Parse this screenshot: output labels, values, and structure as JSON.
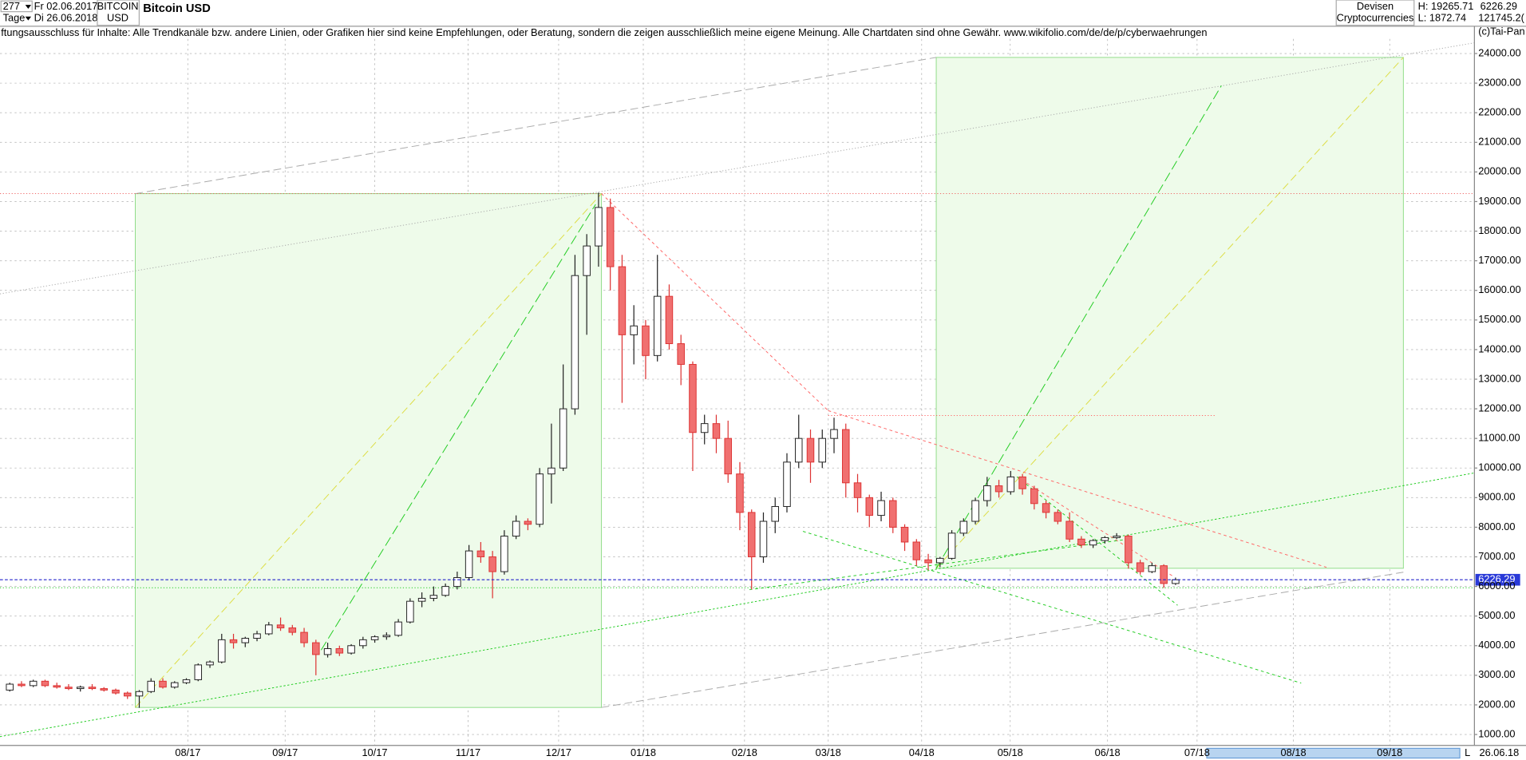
{
  "header": {
    "count": "277",
    "period": "Tage",
    "from": "Fr 02.06.2017",
    "to": "Di 26.06.2018",
    "symbol": [
      "BITCOIN",
      "USD"
    ],
    "title": "Bitcoin USD",
    "market": "Devisen",
    "sector": "Cryptocurrencies",
    "high": "H: 19265.71",
    "low": "L: 1872.74",
    "last": "6226.29",
    "volume": "121745.2("
  },
  "disclaimer": "ftungsausschluss für Inhalte: Alle Trendkanäle bzw. andere Linien, oder Grafiken hier sind keine Empfehlungen, oder Beratung, sondern die zeigen ausschließlich meine eigene Meinung. Alle Chartdaten sind ohne Gewähr.  www.wikifolio.com/de/de/p/cyberwaehrungen",
  "copyright": "(c)Tai-Pan",
  "footer": {
    "scale": "L",
    "date": "26.06.18"
  },
  "chart_data": {
    "type": "candlestick",
    "up_color": "#ffffff",
    "down_color": "#f07070",
    "grid": true,
    "ylim": [
      270,
      25150
    ],
    "yticks": [
      {
        "value": 1000,
        "label": "1000.00"
      },
      {
        "value": 2000,
        "label": "2000.00"
      },
      {
        "value": 3000,
        "label": "3000.00"
      },
      {
        "value": 4000,
        "label": "4000.00"
      },
      {
        "value": 5000,
        "label": "5000.00"
      },
      {
        "value": 6000,
        "label": "6000.00"
      },
      {
        "value": 7000,
        "label": "7000.00"
      },
      {
        "value": 8000,
        "label": "8000.00"
      },
      {
        "value": 9000,
        "label": "9000.00"
      },
      {
        "value": 10000,
        "label": "10000.00"
      },
      {
        "value": 11000,
        "label": "11000.00"
      },
      {
        "value": 12000,
        "label": "12000.00"
      },
      {
        "value": 13000,
        "label": "13000.00"
      },
      {
        "value": 14000,
        "label": "14000.00"
      },
      {
        "value": 15000,
        "label": "15000.00"
      },
      {
        "value": 16000,
        "label": "16000.00"
      },
      {
        "value": 17000,
        "label": "17000.00"
      },
      {
        "value": 18000,
        "label": "18000.00"
      },
      {
        "value": 19000,
        "label": "19000.00"
      },
      {
        "value": 20000,
        "label": "20000.00"
      },
      {
        "value": 21000,
        "label": "21000.00"
      },
      {
        "value": 22000,
        "label": "22000.00"
      },
      {
        "value": 23000,
        "label": "23000.00"
      },
      {
        "value": 24000,
        "label": "24000.00"
      }
    ],
    "xtick_labels": [
      "08/17",
      "09/17",
      "10/17",
      "11/17",
      "12/17",
      "01/18",
      "02/18",
      "03/18",
      "04/18",
      "05/18",
      "06/18",
      "07/18",
      "08/18",
      "09/18"
    ],
    "candles": [
      [
        2500,
        2750,
        2450,
        2700
      ],
      [
        2700,
        2800,
        2600,
        2650
      ],
      [
        2650,
        2850,
        2600,
        2800
      ],
      [
        2800,
        2850,
        2600,
        2650
      ],
      [
        2650,
        2750,
        2550,
        2600
      ],
      [
        2600,
        2700,
        2500,
        2550
      ],
      [
        2550,
        2650,
        2450,
        2600
      ],
      [
        2600,
        2700,
        2500,
        2550
      ],
      [
        2550,
        2600,
        2450,
        2500
      ],
      [
        2500,
        2550,
        2350,
        2400
      ],
      [
        2400,
        2450,
        2200,
        2300
      ],
      [
        2300,
        2500,
        1900,
        2450
      ],
      [
        2450,
        2900,
        2400,
        2800
      ],
      [
        2800,
        2900,
        2550,
        2600
      ],
      [
        2600,
        2800,
        2550,
        2750
      ],
      [
        2750,
        2900,
        2700,
        2850
      ],
      [
        2850,
        3400,
        2800,
        3350
      ],
      [
        3350,
        3500,
        3250,
        3450
      ],
      [
        3450,
        4400,
        3400,
        4200
      ],
      [
        4200,
        4400,
        3900,
        4100
      ],
      [
        4100,
        4300,
        3950,
        4250
      ],
      [
        4250,
        4500,
        4150,
        4400
      ],
      [
        4400,
        4800,
        4350,
        4700
      ],
      [
        4700,
        4950,
        4500,
        4600
      ],
      [
        4600,
        4700,
        4350,
        4450
      ],
      [
        4450,
        4600,
        3950,
        4100
      ],
      [
        4100,
        4200,
        3000,
        3700
      ],
      [
        3700,
        4100,
        3600,
        3900
      ],
      [
        3900,
        4000,
        3650,
        3750
      ],
      [
        3750,
        4050,
        3700,
        4000
      ],
      [
        4000,
        4300,
        3900,
        4200
      ],
      [
        4200,
        4350,
        4100,
        4300
      ],
      [
        4300,
        4450,
        4200,
        4350
      ],
      [
        4350,
        4900,
        4300,
        4800
      ],
      [
        4800,
        5600,
        4750,
        5500
      ],
      [
        5500,
        5800,
        5300,
        5600
      ],
      [
        5600,
        6000,
        5500,
        5700
      ],
      [
        5700,
        6100,
        5650,
        6000
      ],
      [
        6000,
        6500,
        5900,
        6300
      ],
      [
        6300,
        7400,
        6200,
        7200
      ],
      [
        7200,
        7500,
        6800,
        7000
      ],
      [
        7000,
        7200,
        5600,
        6500
      ],
      [
        6500,
        7900,
        6400,
        7700
      ],
      [
        7700,
        8400,
        7600,
        8200
      ],
      [
        8200,
        8300,
        7900,
        8100
      ],
      [
        8100,
        10000,
        8000,
        9800
      ],
      [
        9800,
        11500,
        8800,
        10000
      ],
      [
        10000,
        13500,
        9900,
        12000
      ],
      [
        12000,
        17200,
        11800,
        16500
      ],
      [
        16500,
        17900,
        14500,
        17500
      ],
      [
        17500,
        19300,
        16800,
        18800
      ],
      [
        18800,
        19100,
        16000,
        16800
      ],
      [
        16800,
        17200,
        12200,
        14500
      ],
      [
        14500,
        15500,
        13500,
        14800
      ],
      [
        14800,
        15000,
        13000,
        13800
      ],
      [
        13800,
        17200,
        13600,
        15800
      ],
      [
        15800,
        16200,
        14000,
        14200
      ],
      [
        14200,
        14500,
        12800,
        13500
      ],
      [
        13500,
        13600,
        9900,
        11200
      ],
      [
        11200,
        11800,
        10800,
        11500
      ],
      [
        11500,
        11800,
        10500,
        11000
      ],
      [
        11000,
        11600,
        9500,
        9800
      ],
      [
        9800,
        10200,
        7900,
        8500
      ],
      [
        8500,
        8600,
        5900,
        7000
      ],
      [
        7000,
        8500,
        6800,
        8200
      ],
      [
        8200,
        9000,
        7800,
        8700
      ],
      [
        8700,
        10500,
        8500,
        10200
      ],
      [
        10200,
        11800,
        10000,
        11000
      ],
      [
        11000,
        11300,
        9500,
        10200
      ],
      [
        10200,
        11300,
        10000,
        11000
      ],
      [
        11000,
        11700,
        10500,
        11300
      ],
      [
        11300,
        11500,
        9000,
        9500
      ],
      [
        9500,
        9800,
        8500,
        9000
      ],
      [
        9000,
        9100,
        8000,
        8400
      ],
      [
        8400,
        9200,
        8200,
        8900
      ],
      [
        8900,
        9000,
        7800,
        8000
      ],
      [
        8000,
        8100,
        7200,
        7500
      ],
      [
        7500,
        7600,
        6700,
        6900
      ],
      [
        6900,
        7100,
        6550,
        6800
      ],
      [
        6800,
        7000,
        6650,
        6950
      ],
      [
        6950,
        7900,
        6900,
        7800
      ],
      [
        7800,
        8300,
        7700,
        8200
      ],
      [
        8200,
        9000,
        8100,
        8900
      ],
      [
        8900,
        9700,
        8700,
        9400
      ],
      [
        9400,
        9600,
        9000,
        9200
      ],
      [
        9200,
        9900,
        9100,
        9700
      ],
      [
        9700,
        9800,
        9100,
        9300
      ],
      [
        9300,
        9400,
        8600,
        8800
      ],
      [
        8800,
        8900,
        8300,
        8500
      ],
      [
        8500,
        8600,
        8100,
        8200
      ],
      [
        8200,
        8500,
        7500,
        7600
      ],
      [
        7600,
        7700,
        7300,
        7400
      ],
      [
        7400,
        7600,
        7300,
        7550
      ],
      [
        7550,
        7700,
        7450,
        7650
      ],
      [
        7650,
        7800,
        7600,
        7700
      ],
      [
        7700,
        7750,
        6600,
        6800
      ],
      [
        6800,
        6900,
        6400,
        6500
      ],
      [
        6500,
        6800,
        6450,
        6700
      ],
      [
        6700,
        6750,
        5950,
        6100
      ],
      [
        6100,
        6300,
        6050,
        6226.29
      ]
    ]
  }
}
